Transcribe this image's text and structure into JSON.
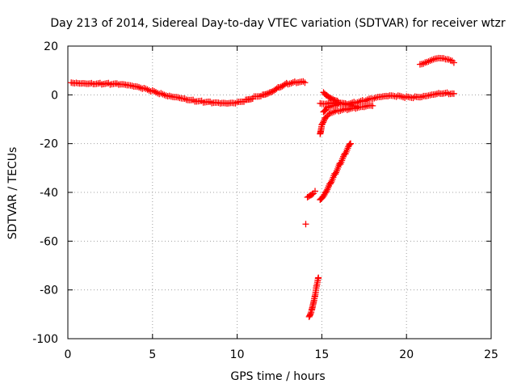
{
  "chart_data": {
    "type": "scatter",
    "title": "Day 213 of 2014, Sidereal Day-to-day VTEC variation (SDTVAR) for receiver wtzr",
    "xlabel": "GPS time / hours",
    "ylabel": "SDTVAR / TECUs",
    "xlim": [
      0,
      25
    ],
    "ylim": [
      -100,
      20
    ],
    "xticks": [
      0,
      5,
      10,
      15,
      20,
      25
    ],
    "yticks": [
      -100,
      -80,
      -60,
      -40,
      -20,
      0,
      20
    ],
    "xtick_labels": [
      "0",
      "5",
      "10",
      "15",
      "20",
      "25"
    ],
    "ytick_labels": [
      "-100",
      "-80",
      "-60",
      "-40",
      "-20",
      "0",
      "20"
    ],
    "grid": true,
    "marker": "+",
    "color": "#ff0000",
    "series": [
      {
        "name": "main-trace",
        "points": [
          [
            0.2,
            5
          ],
          [
            0.5,
            5.2
          ],
          [
            1.0,
            5.1
          ],
          [
            1.5,
            4.9
          ],
          [
            2.0,
            4.7
          ],
          [
            2.5,
            4.4
          ],
          [
            3.0,
            4.1
          ],
          [
            3.5,
            3.6
          ],
          [
            4.0,
            3.0
          ],
          [
            4.5,
            2.3
          ],
          [
            5.0,
            1.5
          ],
          [
            5.5,
            0.6
          ],
          [
            6.0,
            -0.2
          ],
          [
            6.5,
            -0.6
          ],
          [
            7.0,
            -1.5
          ],
          [
            7.5,
            -2.3
          ],
          [
            8.0,
            -2.9
          ],
          [
            8.5,
            -3.4
          ],
          [
            9.0,
            -3.8
          ],
          [
            9.5,
            -3.9
          ],
          [
            10.0,
            -3.5
          ],
          [
            10.5,
            -2.4
          ],
          [
            11.0,
            -0.8
          ],
          [
            11.5,
            0.2
          ],
          [
            12.0,
            1.5
          ],
          [
            12.5,
            3.5
          ],
          [
            13.0,
            4.8
          ],
          [
            13.5,
            5.2
          ],
          [
            14.0,
            5.0
          ]
        ]
      },
      {
        "name": "recovery-upper",
        "points": [
          [
            14.9,
            -3.5
          ],
          [
            15.5,
            -3.0
          ],
          [
            16.0,
            -3.2
          ],
          [
            16.5,
            -3.4
          ],
          [
            17.0,
            -3.0
          ],
          [
            17.5,
            -2.5
          ],
          [
            18.0,
            -1.8
          ],
          [
            18.5,
            -1.2
          ],
          [
            19.0,
            -0.8
          ],
          [
            19.5,
            -0.8
          ],
          [
            20.0,
            -1.0
          ],
          [
            20.5,
            -0.8
          ],
          [
            21.0,
            -0.3
          ],
          [
            21.5,
            0.5
          ],
          [
            22.0,
            1.0
          ],
          [
            22.5,
            0.8
          ],
          [
            22.8,
            0.5
          ]
        ]
      },
      {
        "name": "recovery-lower",
        "points": [
          [
            14.9,
            -16
          ],
          [
            15.0,
            -12
          ],
          [
            15.2,
            -9
          ],
          [
            15.5,
            -7
          ],
          [
            16.0,
            -6.3
          ],
          [
            16.5,
            -6
          ],
          [
            17.0,
            -5.7
          ],
          [
            17.5,
            -5.3
          ],
          [
            18.0,
            -4.5
          ]
        ]
      },
      {
        "name": "recovery-mid",
        "points": [
          [
            15.1,
            -7
          ],
          [
            15.3,
            -5
          ],
          [
            15.6,
            -4
          ],
          [
            16.0,
            -3.6
          ]
        ]
      },
      {
        "name": "recovery-arc",
        "points": [
          [
            15.1,
            1
          ],
          [
            15.3,
            0
          ],
          [
            15.6,
            -1.2
          ],
          [
            16.0,
            -2.6
          ],
          [
            16.4,
            -3.6
          ],
          [
            16.8,
            -4.5
          ],
          [
            17.1,
            -5.0
          ]
        ]
      },
      {
        "name": "evening-bump",
        "points": [
          [
            20.8,
            12.5
          ],
          [
            21.1,
            13.5
          ],
          [
            21.4,
            14.5
          ],
          [
            21.7,
            15.3
          ],
          [
            22.0,
            15.4
          ],
          [
            22.3,
            14.8
          ],
          [
            22.6,
            14.0
          ],
          [
            22.8,
            13.2
          ]
        ]
      },
      {
        "name": "steep-rise",
        "points": [
          [
            14.9,
            -43
          ],
          [
            15.2,
            -40
          ],
          [
            15.5,
            -36
          ],
          [
            15.8,
            -32
          ],
          [
            16.1,
            -28
          ],
          [
            16.4,
            -24
          ],
          [
            16.7,
            -20
          ]
        ]
      },
      {
        "name": "short-segment",
        "points": [
          [
            14.15,
            -42
          ],
          [
            14.3,
            -41
          ],
          [
            14.5,
            -40
          ],
          [
            14.6,
            -39.5
          ]
        ]
      },
      {
        "name": "outlier",
        "points": [
          [
            14.05,
            -53
          ]
        ]
      },
      {
        "name": "deep-drop",
        "points": [
          [
            14.25,
            -91
          ],
          [
            14.4,
            -88
          ],
          [
            14.5,
            -85
          ],
          [
            14.6,
            -82
          ],
          [
            14.7,
            -78
          ],
          [
            14.8,
            -75
          ]
        ]
      }
    ]
  }
}
